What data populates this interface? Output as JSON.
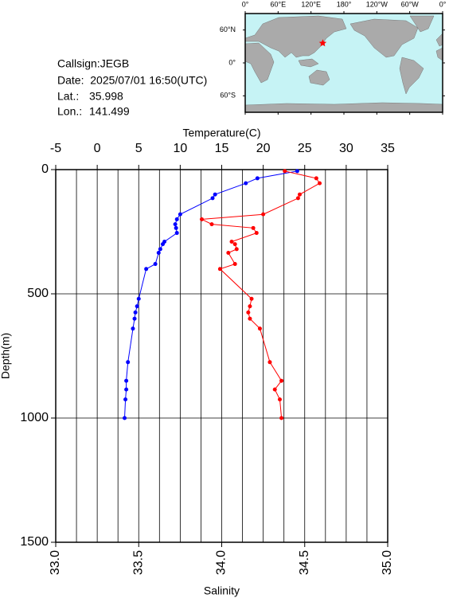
{
  "info": {
    "callsign": "Callsign:JEGB",
    "date": "Date:  2025/07/01 16:50(UTC)",
    "lat_label": "Lat.:",
    "lat": 35.998,
    "lon_label": "Lon.:",
    "lon": 141.499
  },
  "map": {
    "lonlim": [
      0,
      360
    ],
    "latlim": [
      -90,
      90
    ],
    "lon_ticks": [
      {
        "value": 0,
        "label": "0°"
      },
      {
        "value": 60,
        "label": "60°E"
      },
      {
        "value": 120,
        "label": "120°E"
      },
      {
        "value": 180,
        "label": "180°"
      },
      {
        "value": 240,
        "label": "120°W"
      },
      {
        "value": 300,
        "label": "60°W"
      },
      {
        "value": 360,
        "label": "0°"
      }
    ],
    "lat_ticks": [
      {
        "value": 60,
        "label": "60°N"
      },
      {
        "value": 0,
        "label": "0°"
      },
      {
        "value": -60,
        "label": "60°S"
      }
    ],
    "marker_color": "#ff0000"
  },
  "chart_data": {
    "type": "line",
    "x2label": "Temperature(C)",
    "xlabel": "Salinity",
    "ylabel": "Depth(m)",
    "y": [
      6,
      35,
      55,
      100,
      115,
      180,
      200,
      220,
      235,
      255,
      290,
      300,
      320,
      335,
      380,
      400,
      520,
      550,
      575,
      600,
      640,
      775,
      850,
      885,
      925,
      1000
    ],
    "ylim": [
      0,
      1500
    ],
    "y_inverted": true,
    "yticks": [
      0,
      500,
      1000,
      1500
    ],
    "x2lim": [
      -5,
      35
    ],
    "x2ticks": [
      -5,
      0,
      5,
      10,
      15,
      20,
      25,
      30,
      35
    ],
    "x2grid": [
      -2.5,
      0,
      2.5,
      5,
      7.5,
      10,
      12.5,
      15,
      17.5,
      20,
      22.5,
      25,
      27.5,
      30,
      32.5
    ],
    "xlim": [
      33,
      35
    ],
    "xticks": [
      {
        "value": 33,
        "label": "33.0"
      },
      {
        "value": 33.5,
        "label": "33.5"
      },
      {
        "value": 34,
        "label": "34.0"
      },
      {
        "value": 34.5,
        "label": "34.5"
      },
      {
        "value": 35,
        "label": "35.0"
      }
    ],
    "series": [
      {
        "color": "#0000ff",
        "axis": "x2",
        "values": [
          24.1,
          19.3,
          17.9,
          14.2,
          13.9,
          10.0,
          9.6,
          9.4,
          9.5,
          9.6,
          8.1,
          7.9,
          7.6,
          7.4,
          7.0,
          5.9,
          5.0,
          4.8,
          4.6,
          4.5,
          4.3,
          3.7,
          3.5,
          3.5,
          3.4,
          3.3
        ]
      },
      {
        "color": "#ff0000",
        "values": [
          34.38,
          34.57,
          34.59,
          34.47,
          34.46,
          34.25,
          33.88,
          33.94,
          34.19,
          34.21,
          34.06,
          34.08,
          34.09,
          34.04,
          34.08,
          33.99,
          34.18,
          34.17,
          34.16,
          34.17,
          34.23,
          34.29,
          34.36,
          34.32,
          34.35,
          34.36
        ]
      }
    ]
  }
}
